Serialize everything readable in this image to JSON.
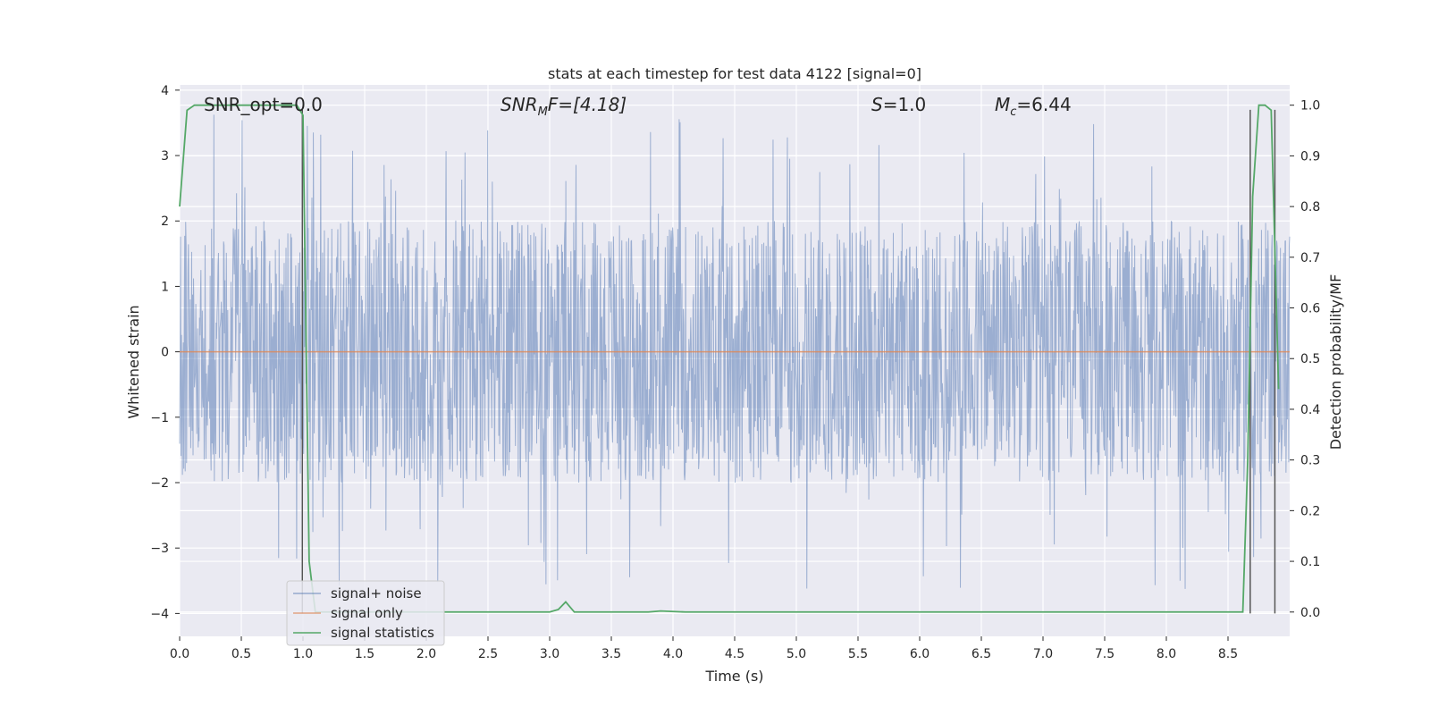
{
  "chart_data": {
    "type": "line",
    "title": "stats at each timestep for test data 4122 [signal=0]",
    "xlabel": "Time (s)",
    "ylabel": "Whitened strain",
    "y2label": "Detection probability/MF",
    "xlim": [
      0,
      9
    ],
    "ylim": [
      -4.35,
      4.08
    ],
    "y2lim": [
      -0.048,
      1.04
    ],
    "x_ticks": [
      "0.0",
      "0.5",
      "1.0",
      "1.5",
      "2.0",
      "2.5",
      "3.0",
      "3.5",
      "4.0",
      "4.5",
      "5.0",
      "5.5",
      "6.0",
      "6.5",
      "7.0",
      "7.5",
      "8.0",
      "8.5"
    ],
    "y_ticks": [
      "4",
      "3",
      "2",
      "1",
      "0",
      "−1",
      "−2",
      "−3",
      "−4"
    ],
    "y2_ticks": [
      "1.0",
      "0.9",
      "0.8",
      "0.7",
      "0.6",
      "0.5",
      "0.4",
      "0.3",
      "0.2",
      "0.1",
      "0.0"
    ],
    "grid": true,
    "legend_position": "lower-left",
    "annotations": {
      "snr_opt": "SNR_opt=0.0",
      "snr_mf_prefix": "SNR",
      "snr_mf_sub": "M",
      "snr_mf_suffix": "F=[4.18]",
      "s_italic": "S",
      "s_value": "=1.0",
      "mc_italic": "M",
      "mc_sub": "c",
      "mc_value": "=6.44"
    },
    "series": [
      {
        "name": "signal+ noise",
        "color": "#4c72b0",
        "style": "random noise, approx. uniform in [-2.5, 2.5] with occasional spikes to ±3.7",
        "amplitude_typical": 2.0,
        "amplitude_max": 3.7
      },
      {
        "name": "signal only",
        "color": "#dd8452",
        "x": [
          0,
          9
        ],
        "y": [
          0,
          0
        ]
      },
      {
        "name": "signal statistics",
        "color": "#55a868",
        "axis": "right",
        "x": [
          0,
          0.06,
          0.12,
          0.5,
          0.95,
          1.0,
          1.05,
          1.1,
          2.0,
          3.0,
          3.07,
          3.13,
          3.2,
          3.8,
          3.9,
          4.1,
          8.0,
          8.62,
          8.66,
          8.7,
          8.75,
          8.8,
          8.85,
          8.91
        ],
        "y": [
          0.8,
          0.99,
          1.0,
          1.0,
          1.0,
          0.98,
          0.1,
          0.0,
          0.0,
          0.0,
          0.005,
          0.02,
          0.0,
          0.0,
          0.002,
          0.0,
          0.0,
          0.0,
          0.3,
          0.82,
          1.0,
          1.0,
          0.99,
          0.44
        ]
      }
    ],
    "vertical_lines": [
      {
        "color": "#555555",
        "x": 0.995,
        "y_range": [
          -4.0,
          3.7
        ]
      },
      {
        "color": "#555555",
        "x": 8.68,
        "y_range": [
          -4.0,
          3.7
        ]
      },
      {
        "color": "#555555",
        "x": 8.88,
        "y_range": [
          -4.0,
          3.7
        ]
      }
    ]
  }
}
